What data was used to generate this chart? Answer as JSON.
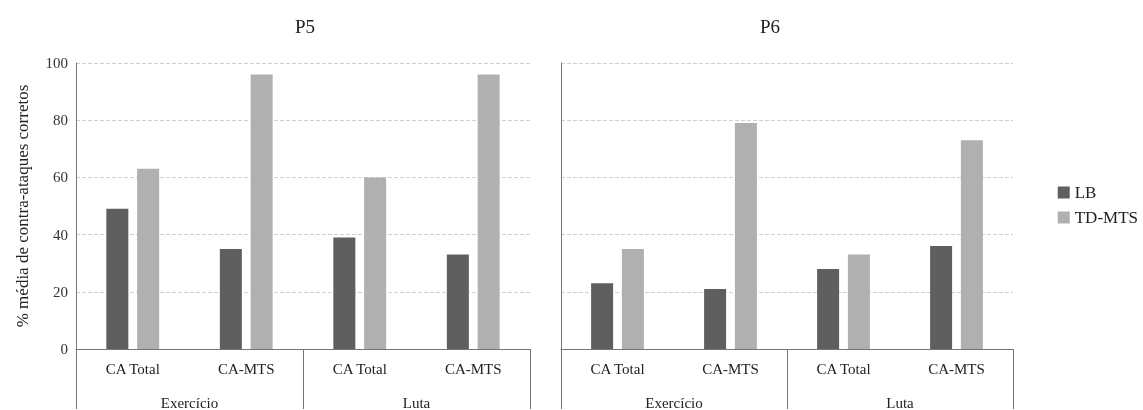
{
  "chart_data": [
    {
      "type": "bar",
      "title": "P5",
      "ylabel": "% média de contra-ataques corretos",
      "categories": [
        "CA Total",
        "CA-MTS",
        "CA Total",
        "CA-MTS"
      ],
      "annotations": [
        "Exercício",
        "Luta"
      ],
      "series": [
        {
          "color": "#5f5f5f",
          "values": [
            49,
            35,
            39,
            33
          ]
        },
        {
          "color": "#b0b0b0",
          "values": [
            63,
            96,
            60,
            96
          ]
        }
      ],
      "ylim": [
        0,
        100
      ],
      "yticks": [
        0,
        20,
        40,
        60,
        80,
        100
      ],
      "grid": "y",
      "legend": false
    },
    {
      "type": "bar",
      "title": "P6",
      "categories": [
        "CA Total",
        "CA-MTS",
        "CA Total",
        "CA-MTS"
      ],
      "annotations": [
        "Exercício",
        "Luta"
      ],
      "series": [
        {
          "name": "LB",
          "color": "#5f5f5f",
          "values": [
            23,
            21,
            28,
            36
          ]
        },
        {
          "name": "TD-MTS",
          "color": "#b0b0b0",
          "values": [
            35,
            79,
            33,
            73
          ]
        }
      ],
      "ylim": [
        0,
        100
      ],
      "yticks": [
        0,
        20,
        40,
        60,
        80,
        100
      ],
      "grid": "y",
      "legend": "right",
      "tick_labels": "x"
    }
  ]
}
